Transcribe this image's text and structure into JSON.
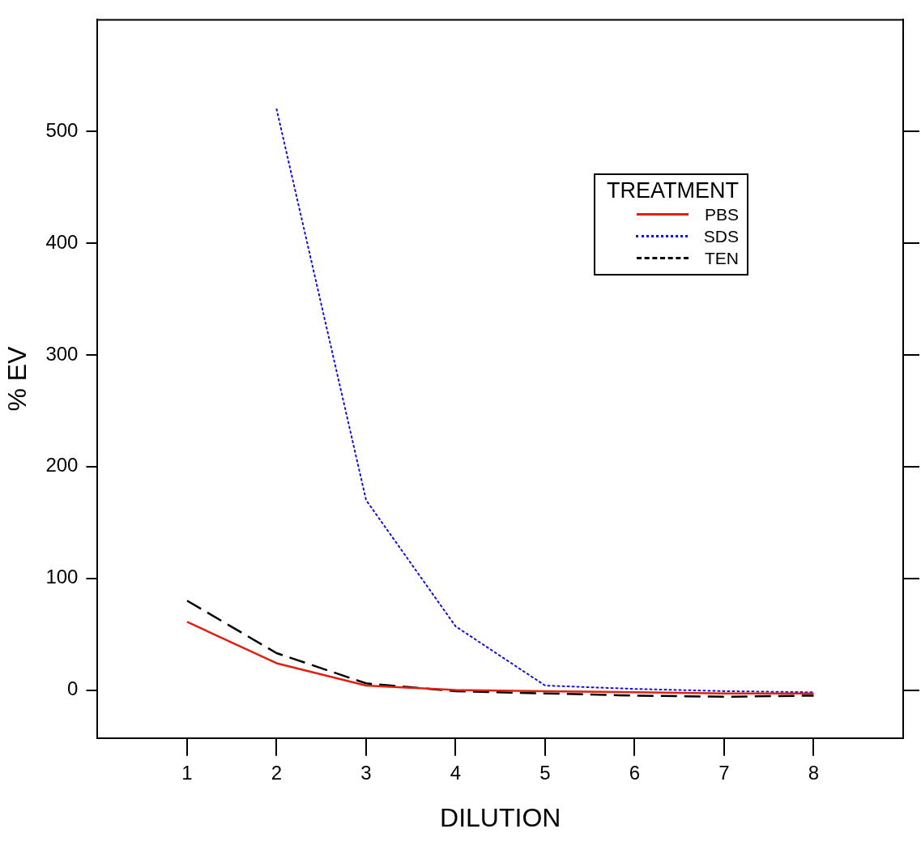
{
  "chart_data": {
    "type": "line",
    "xlabel": "DILUTION",
    "ylabel": "% EV",
    "legend_title": "TREATMENT",
    "legend": "top right",
    "grid": false,
    "marker": "none",
    "x": [
      1,
      2,
      3,
      4,
      5,
      6,
      7,
      8
    ],
    "xlim": [
      0,
      9
    ],
    "xticks": [
      1,
      2,
      3,
      4,
      5,
      6,
      7,
      8
    ],
    "ylim": [
      -43,
      600
    ],
    "yticks": [
      0,
      100,
      200,
      300,
      400,
      500
    ],
    "series": [
      {
        "name": "PBS",
        "color": "#e02010",
        "line_style": "solid",
        "values": [
          61,
          24,
          4,
          0,
          -1,
          -2,
          -3,
          -3
        ]
      },
      {
        "name": "SDS",
        "color": "#1010e0",
        "line_style": "dotted",
        "values": [
          null,
          520,
          170,
          57,
          4,
          1,
          -1,
          -2
        ]
      },
      {
        "name": "TEN",
        "color": "#000000",
        "line_style": "dashed",
        "values": [
          80,
          33,
          6,
          -1,
          -3,
          -5,
          -6,
          -5
        ]
      }
    ]
  }
}
